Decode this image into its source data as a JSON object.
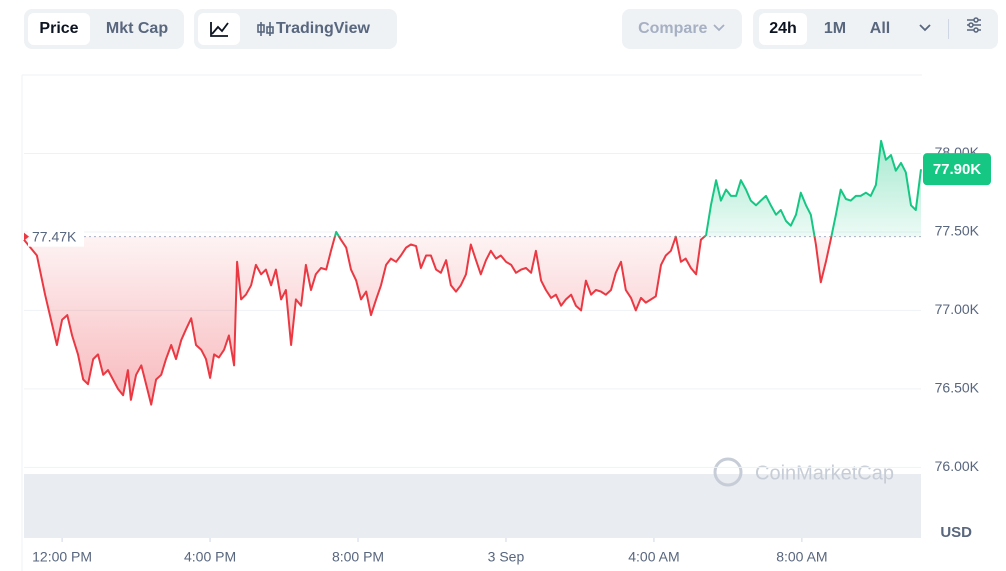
{
  "ui": {
    "tabs": [
      "Price",
      "Mkt Cap"
    ],
    "view": "TradingView",
    "compare": "Compare",
    "ranges": [
      "24h",
      "1M",
      "All"
    ],
    "currency": "USD",
    "watermark": "CoinMarketCap"
  },
  "chart_data": {
    "type": "line",
    "grid": true,
    "up_color": "#16c784",
    "down_color": "#ea3943",
    "xlim": [
      10.97,
      35.22
    ],
    "ylim": [
      75.55,
      78.5
    ],
    "xticks": [
      {
        "value": 12,
        "label": "12:00 PM"
      },
      {
        "value": 16,
        "label": "4:00 PM"
      },
      {
        "value": 20,
        "label": "8:00 PM"
      },
      {
        "value": 24,
        "label": "3 Sep"
      },
      {
        "value": 28,
        "label": "4:00 AM"
      },
      {
        "value": 32,
        "label": "8:00 AM"
      }
    ],
    "yticks": [
      {
        "value": 76,
        "label": "76.00K"
      },
      {
        "value": 76.5,
        "label": "76.50K"
      },
      {
        "value": 77,
        "label": "77.00K"
      },
      {
        "value": 77.5,
        "label": "77.50K"
      },
      {
        "value": 78,
        "label": "78.00K"
      }
    ],
    "reference": {
      "value": 77.47,
      "label": "77.47K"
    },
    "current": {
      "value": 77.9,
      "label": "77.90K"
    },
    "x": [
      10.97,
      11.32,
      11.54,
      11.73,
      11.86,
      12.0,
      12.14,
      12.27,
      12.43,
      12.57,
      12.7,
      12.84,
      12.97,
      13.11,
      13.24,
      13.51,
      13.65,
      13.78,
      13.86,
      14.0,
      14.14,
      14.27,
      14.41,
      14.54,
      14.68,
      14.81,
      14.95,
      15.08,
      15.22,
      15.35,
      15.49,
      15.62,
      15.76,
      15.89,
      16.0,
      16.11,
      16.24,
      16.38,
      16.51,
      16.65,
      16.73,
      16.84,
      16.97,
      17.11,
      17.24,
      17.38,
      17.51,
      17.65,
      17.78,
      17.92,
      18.05,
      18.19,
      18.32,
      18.46,
      18.59,
      18.73,
      18.86,
      19.0,
      19.14,
      19.27,
      19.41,
      19.54,
      19.68,
      19.81,
      19.95,
      20.08,
      20.22,
      20.35,
      20.49,
      20.62,
      20.76,
      20.89,
      21.03,
      21.16,
      21.3,
      21.43,
      21.57,
      21.7,
      21.84,
      21.97,
      22.11,
      22.24,
      22.38,
      22.51,
      22.65,
      22.78,
      22.92,
      23.05,
      23.19,
      23.32,
      23.46,
      23.59,
      23.73,
      23.86,
      24.0,
      24.14,
      24.27,
      24.41,
      24.54,
      24.68,
      24.81,
      24.95,
      25.08,
      25.22,
      25.35,
      25.49,
      25.62,
      25.76,
      25.89,
      26.03,
      26.16,
      26.3,
      26.43,
      26.57,
      26.7,
      26.84,
      26.97,
      27.11,
      27.24,
      27.38,
      27.51,
      27.65,
      27.78,
      27.92,
      28.05,
      28.19,
      28.32,
      28.46,
      28.59,
      28.73,
      28.86,
      29.0,
      29.14,
      29.27,
      29.41,
      29.54,
      29.68,
      29.81,
      29.95,
      30.08,
      30.22,
      30.35,
      30.49,
      30.62,
      30.76,
      30.89,
      31.03,
      31.16,
      31.3,
      31.43,
      31.57,
      31.7,
      31.84,
      31.97,
      32.11,
      32.24,
      32.38,
      32.51,
      32.65,
      32.78,
      32.92,
      33.05,
      33.19,
      33.32,
      33.46,
      33.59,
      33.73,
      33.86,
      34.0,
      34.14,
      34.27,
      34.41,
      34.54,
      34.68,
      34.81,
      34.95,
      35.08,
      35.22
    ],
    "series": [
      {
        "values": [
          77.45,
          77.35,
          77.1,
          76.91,
          76.78,
          76.94,
          76.97,
          76.84,
          76.72,
          76.56,
          76.53,
          76.69,
          76.72,
          76.59,
          76.62,
          76.5,
          76.46,
          76.62,
          76.43,
          76.59,
          76.65,
          76.53,
          76.4,
          76.56,
          76.59,
          76.69,
          76.78,
          76.69,
          76.81,
          76.88,
          76.95,
          76.78,
          76.75,
          76.69,
          76.57,
          76.72,
          76.7,
          76.75,
          76.84,
          76.65,
          77.31,
          77.07,
          77.1,
          77.16,
          77.29,
          77.23,
          77.26,
          77.16,
          77.26,
          77.07,
          77.13,
          76.78,
          77.07,
          77.03,
          77.29,
          77.13,
          77.23,
          77.27,
          77.26,
          77.38,
          77.5,
          77.45,
          77.4,
          77.26,
          77.19,
          77.07,
          77.12,
          76.97,
          77.07,
          77.16,
          77.29,
          77.33,
          77.31,
          77.35,
          77.4,
          77.42,
          77.41,
          77.27,
          77.35,
          77.35,
          77.26,
          77.24,
          77.32,
          77.16,
          77.12,
          77.16,
          77.23,
          77.42,
          77.32,
          77.23,
          77.32,
          77.38,
          77.33,
          77.35,
          77.31,
          77.29,
          77.24,
          77.26,
          77.27,
          77.24,
          77.38,
          77.19,
          77.13,
          77.08,
          77.1,
          77.03,
          77.07,
          77.1,
          77.03,
          77.0,
          77.19,
          77.1,
          77.13,
          77.12,
          77.1,
          77.13,
          77.24,
          77.31,
          77.13,
          77.08,
          77.0,
          77.08,
          77.05,
          77.07,
          77.09,
          77.29,
          77.35,
          77.38,
          77.47,
          77.31,
          77.33,
          77.27,
          77.23,
          77.45,
          77.48,
          77.67,
          77.83,
          77.7,
          77.77,
          77.73,
          77.73,
          77.83,
          77.77,
          77.7,
          77.67,
          77.7,
          77.73,
          77.67,
          77.61,
          77.64,
          77.57,
          77.54,
          77.61,
          77.75,
          77.67,
          77.61,
          77.42,
          77.18,
          77.31,
          77.45,
          77.61,
          77.77,
          77.71,
          77.7,
          77.73,
          77.73,
          77.75,
          77.73,
          77.8,
          78.08,
          77.96,
          77.99,
          77.89,
          77.94,
          77.88,
          77.67,
          77.64,
          77.9
        ]
      }
    ]
  }
}
